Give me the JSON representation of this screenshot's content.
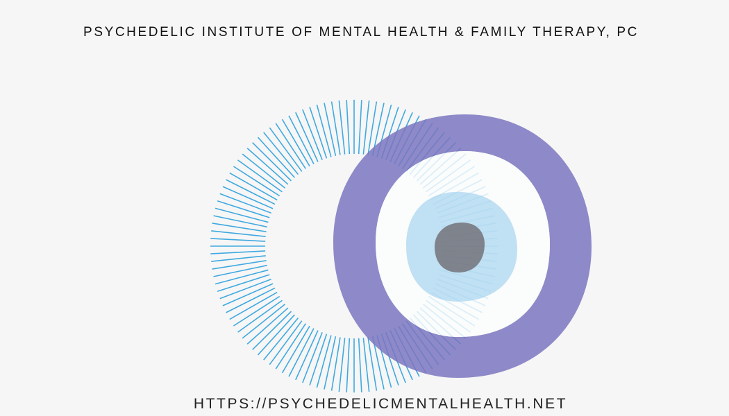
{
  "header": {
    "title": "PSYCHEDELIC INSTITUTE OF MENTAL HEALTH & FAMILY THERAPY, PC"
  },
  "footer": {
    "url": "HTTPS://PSYCHEDELICMENTALHEALTH.NET"
  },
  "logo": {
    "icon": "eye-logo",
    "colors": {
      "rays": "#3fa9e0",
      "ring": "#7b75c0",
      "iris": "#b3dcf2",
      "pupil": "#7d7b80",
      "background": "#f6f6f6"
    }
  }
}
